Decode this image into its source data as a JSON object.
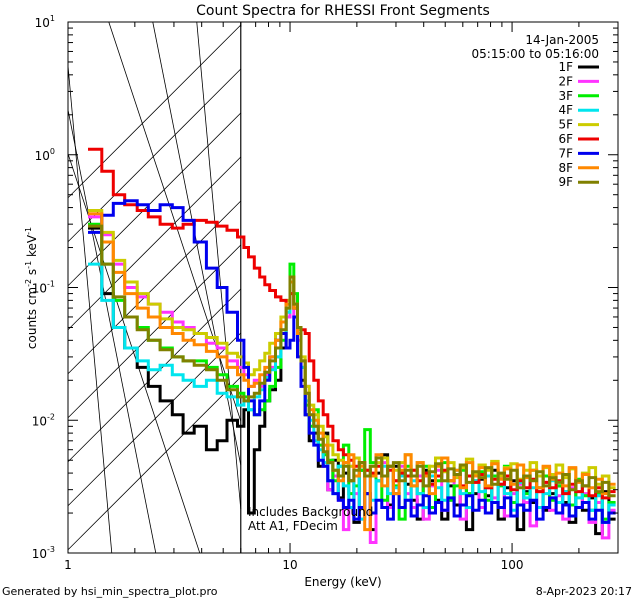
{
  "chart_data": {
    "type": "line",
    "title": "Count Spectra for RHESSI Front Segments",
    "xlabel": "Energy (keV)",
    "ylabel_parts": {
      "main": "counts cm",
      "exp1": "-2",
      "s": " s",
      "exp2": "-1",
      "kev": " keV",
      "exp3": "-1"
    },
    "xscale": "log",
    "yscale": "log",
    "xlim": [
      1,
      300
    ],
    "ylim": [
      0.001,
      10
    ],
    "x_ticks": [
      {
        "value": 1,
        "label": "1"
      },
      {
        "value": 10,
        "label": "10"
      },
      {
        "value": 100,
        "label": "100"
      }
    ],
    "y_ticks": [
      {
        "value": 0.001,
        "base": "10",
        "exp": "-3"
      },
      {
        "value": 0.01,
        "base": "10",
        "exp": "-2"
      },
      {
        "value": 0.1,
        "base": "10",
        "exp": "-1"
      },
      {
        "value": 1,
        "base": "10",
        "exp": "0"
      },
      {
        "value": 10,
        "base": "10",
        "exp": "1"
      }
    ],
    "date": "14-Jan-2005",
    "time_range": "05:15:00 to 05:16:00",
    "shaded_region_kev": [
      1,
      6
    ],
    "annotation_lines": [
      "Includes Background",
      "Att A1, FDecim"
    ],
    "footer_left": "Generated by hsi_min_spectra_plot.pro",
    "footer_right": "8-Apr-2023 20:17",
    "edges": [
      1.23,
      1.42,
      1.6,
      1.8,
      2.05,
      2.3,
      2.6,
      2.95,
      3.3,
      3.7,
      4.2,
      4.7,
      5.2,
      5.8,
      6.2,
      6.5,
      6.9,
      7.3,
      7.7,
      8.1,
      8.6,
      9.1,
      9.6,
      10.0,
      10.4,
      10.8,
      11.2,
      11.7,
      12.2,
      12.8,
      13.4,
      14.1,
      14.8,
      15.6,
      16.5,
      17.4,
      18.4,
      19.4,
      20.5,
      21.7,
      23.0,
      24.4,
      25.9,
      27.5,
      29.2,
      31.0,
      33.0,
      35.1,
      37.4,
      39.8,
      42.4,
      45.2,
      48.2,
      51.4,
      54.8,
      58.4,
      62.3,
      66.5,
      71.0,
      75.8,
      81.0,
      86.5,
      92.4,
      98.7,
      105.5,
      112.8,
      120.6,
      129.0,
      138.0,
      147.6,
      157.9,
      169.0,
      180.9,
      193.7,
      207.4,
      222.1,
      237.9,
      254.9,
      273.1,
      292.7
    ],
    "series": [
      {
        "name": "1F",
        "color": "#000000",
        "values": [
          0.28,
          0.09,
          0.05,
          0.035,
          0.025,
          0.018,
          0.014,
          0.011,
          0.008,
          0.009,
          0.006,
          0.007,
          0.01,
          0.009,
          0.012,
          0.002,
          0.006,
          0.009,
          0.014,
          0.017,
          0.02,
          0.035,
          0.06,
          0.11,
          0.07,
          0.048,
          0.02,
          0.011,
          0.007,
          0.008,
          0.0045,
          0.008,
          0.003,
          0.005,
          0.0026,
          0.004,
          0.0035,
          0.0017,
          0.0042,
          0.0028,
          0.0015,
          0.004,
          0.0055,
          0.0023,
          0.0045,
          0.004,
          0.0033,
          0.0025,
          0.0018,
          0.0042,
          0.0035,
          0.0025,
          0.0018,
          0.0032,
          0.0023,
          0.0043,
          0.0015,
          0.0028,
          0.0036,
          0.0027,
          0.0042,
          0.0018,
          0.0031,
          0.0035,
          0.0015,
          0.0029,
          0.0024,
          0.0038,
          0.0021,
          0.0028,
          0.0032,
          0.0024,
          0.0017,
          0.0035,
          0.0021,
          0.0026,
          0.0014,
          0.0029,
          0.0018
        ]
      },
      {
        "name": "2F",
        "color": "#ff33ff",
        "values": [
          0.34,
          0.25,
          0.15,
          0.1,
          0.085,
          0.075,
          0.065,
          0.055,
          0.05,
          0.045,
          0.038,
          0.035,
          0.028,
          0.025,
          0.022,
          0.018,
          0.02,
          0.018,
          0.022,
          0.025,
          0.03,
          0.045,
          0.06,
          0.09,
          0.06,
          0.04,
          0.028,
          0.018,
          0.011,
          0.009,
          0.0065,
          0.0045,
          0.003,
          0.0038,
          0.0025,
          0.0015,
          0.0045,
          0.0028,
          0.0018,
          0.0038,
          0.0012,
          0.0035,
          0.0048,
          0.0022,
          0.0035,
          0.0045,
          0.0028,
          0.0022,
          0.0038,
          0.0018,
          0.0032,
          0.0042,
          0.0021,
          0.0025,
          0.0038,
          0.0018,
          0.0028,
          0.0034,
          0.0022,
          0.0031,
          0.0026,
          0.0037,
          0.0019,
          0.0028,
          0.0033,
          0.0024,
          0.0016,
          0.0029,
          0.0034,
          0.0021,
          0.0027,
          0.0018,
          0.0031,
          0.0022,
          0.0028,
          0.0017,
          0.0024,
          0.0013,
          0.0021
        ]
      },
      {
        "name": "3F",
        "color": "#00ee00",
        "values": [
          0.3,
          0.15,
          0.08,
          0.06,
          0.05,
          0.04,
          0.035,
          0.03,
          0.028,
          0.028,
          0.025,
          0.022,
          0.018,
          0.016,
          0.015,
          0.012,
          0.011,
          0.012,
          0.014,
          0.018,
          0.025,
          0.04,
          0.07,
          0.15,
          0.09,
          0.05,
          0.025,
          0.013,
          0.009,
          0.012,
          0.0065,
          0.0055,
          0.005,
          0.0035,
          0.0045,
          0.0065,
          0.0028,
          0.0032,
          0.0042,
          0.0085,
          0.0048,
          0.0035,
          0.0025,
          0.0045,
          0.0032,
          0.0018,
          0.0045,
          0.0032,
          0.0028,
          0.0045,
          0.0022,
          0.0035,
          0.0048,
          0.0025,
          0.0032,
          0.0042,
          0.0028,
          0.0035,
          0.0041,
          0.0025,
          0.0038,
          0.0032,
          0.0045,
          0.0024,
          0.0035,
          0.0028,
          0.0042,
          0.0031,
          0.0038,
          0.0025,
          0.0032,
          0.0029,
          0.0023,
          0.0036,
          0.0027,
          0.0021,
          0.0028,
          0.0018,
          0.0024
        ]
      },
      {
        "name": "4F",
        "color": "#00e5ee",
        "values": [
          0.15,
          0.08,
          0.05,
          0.035,
          0.028,
          0.024,
          0.026,
          0.022,
          0.02,
          0.018,
          0.02,
          0.016,
          0.015,
          0.013,
          0.014,
          0.012,
          0.015,
          0.017,
          0.021,
          0.024,
          0.03,
          0.045,
          0.065,
          0.11,
          0.07,
          0.045,
          0.025,
          0.014,
          0.01,
          0.007,
          0.006,
          0.0048,
          0.0035,
          0.0028,
          0.0045,
          0.0032,
          0.0022,
          0.0038,
          0.0018,
          0.0042,
          0.0025,
          0.0035,
          0.0045,
          0.0028,
          0.0031,
          0.0038,
          0.0025,
          0.0035,
          0.0028,
          0.0022,
          0.0038,
          0.0031,
          0.0025,
          0.0035,
          0.0042,
          0.0028,
          0.0022,
          0.0035,
          0.0029,
          0.0038,
          0.0024,
          0.0033,
          0.0028,
          0.0021,
          0.0034,
          0.0026,
          0.0031,
          0.0022,
          0.0028,
          0.0035,
          0.0024,
          0.0029,
          0.0019,
          0.0026,
          0.0032,
          0.0021,
          0.0027,
          0.0017,
          0.0023
        ]
      },
      {
        "name": "5F",
        "color": "#cccc00",
        "values": [
          0.38,
          0.26,
          0.16,
          0.11,
          0.09,
          0.075,
          0.058,
          0.05,
          0.048,
          0.045,
          0.042,
          0.038,
          0.032,
          0.03,
          0.027,
          0.022,
          0.024,
          0.028,
          0.032,
          0.038,
          0.045,
          0.06,
          0.08,
          0.12,
          0.075,
          0.048,
          0.03,
          0.018,
          0.013,
          0.011,
          0.009,
          0.0075,
          0.0065,
          0.0055,
          0.005,
          0.0048,
          0.0045,
          0.0052,
          0.0048,
          0.0042,
          0.0045,
          0.0048,
          0.0052,
          0.0045,
          0.0042,
          0.0048,
          0.0055,
          0.0042,
          0.0048,
          0.0038,
          0.0045,
          0.0052,
          0.0041,
          0.0048,
          0.0037,
          0.0044,
          0.0051,
          0.0039,
          0.0046,
          0.0042,
          0.0049,
          0.0038,
          0.0044,
          0.0047,
          0.0036,
          0.0042,
          0.0048,
          0.0038,
          0.0044,
          0.0039,
          0.0046,
          0.0037,
          0.0043,
          0.0035,
          0.004,
          0.0044,
          0.0033,
          0.0038,
          0.0031
        ]
      },
      {
        "name": "6F",
        "color": "#ee0000",
        "values": [
          1.1,
          0.75,
          0.5,
          0.42,
          0.38,
          0.34,
          0.3,
          0.28,
          0.3,
          0.32,
          0.31,
          0.29,
          0.27,
          0.24,
          0.2,
          0.17,
          0.14,
          0.12,
          0.105,
          0.095,
          0.085,
          0.08,
          0.075,
          0.09,
          0.07,
          0.05,
          0.048,
          0.045,
          0.028,
          0.02,
          0.014,
          0.011,
          0.009,
          0.007,
          0.006,
          0.0055,
          0.005,
          0.0045,
          0.0048,
          0.0042,
          0.004,
          0.0045,
          0.0038,
          0.0042,
          0.0035,
          0.004,
          0.0038,
          0.0042,
          0.0035,
          0.004,
          0.0033,
          0.0038,
          0.0042,
          0.0035,
          0.0039,
          0.0032,
          0.0038,
          0.0034,
          0.0039,
          0.0031,
          0.0036,
          0.0033,
          0.0038,
          0.003,
          0.0035,
          0.0031,
          0.0036,
          0.0029,
          0.0034,
          0.0031,
          0.0035,
          0.0028,
          0.0033,
          0.0029,
          0.0032,
          0.0027,
          0.0031,
          0.0026,
          0.0029
        ]
      },
      {
        "name": "7F",
        "color": "#0000ee",
        "values": [
          0.26,
          0.35,
          0.43,
          0.45,
          0.42,
          0.38,
          0.42,
          0.4,
          0.32,
          0.22,
          0.14,
          0.1,
          0.065,
          0.04,
          0.025,
          0.014,
          0.011,
          0.014,
          0.02,
          0.03,
          0.04,
          0.045,
          0.035,
          0.04,
          0.06,
          0.03,
          0.018,
          0.011,
          0.008,
          0.0065,
          0.005,
          0.0045,
          0.0035,
          0.0028,
          0.0025,
          0.0022,
          0.0025,
          0.0018,
          0.0022,
          0.0028,
          0.002,
          0.0025,
          0.0022,
          0.0018,
          0.0028,
          0.0022,
          0.0025,
          0.0019,
          0.0023,
          0.0027,
          0.002,
          0.0024,
          0.0021,
          0.0026,
          0.0019,
          0.0023,
          0.0027,
          0.0021,
          0.0025,
          0.002,
          0.0024,
          0.0022,
          0.0026,
          0.0019,
          0.0023,
          0.0021,
          0.0025,
          0.0018,
          0.0022,
          0.0026,
          0.002,
          0.0023,
          0.0019,
          0.0022,
          0.0024,
          0.0018,
          0.0021,
          0.0017,
          0.002
        ]
      },
      {
        "name": "8F",
        "color": "#ff8800",
        "values": [
          0.36,
          0.22,
          0.13,
          0.09,
          0.07,
          0.06,
          0.05,
          0.045,
          0.04,
          0.037,
          0.033,
          0.03,
          0.025,
          0.022,
          0.02,
          0.018,
          0.019,
          0.022,
          0.025,
          0.03,
          0.04,
          0.055,
          0.075,
          0.11,
          0.07,
          0.045,
          0.028,
          0.016,
          0.012,
          0.01,
          0.008,
          0.0065,
          0.0048,
          0.0042,
          0.0035,
          0.0048,
          0.0055,
          0.0038,
          0.0045,
          0.0015,
          0.0038,
          0.0055,
          0.0032,
          0.0045,
          0.0028,
          0.0042,
          0.0055,
          0.0032,
          0.0048,
          0.0038,
          0.0028,
          0.0045,
          0.0052,
          0.0035,
          0.0042,
          0.0031,
          0.0048,
          0.0038,
          0.0044,
          0.0032,
          0.0047,
          0.0036,
          0.0043,
          0.0033,
          0.0046,
          0.0037,
          0.0042,
          0.0031,
          0.0045,
          0.0036,
          0.004,
          0.0032,
          0.0044,
          0.0034,
          0.0039,
          0.0031,
          0.0036,
          0.0028,
          0.0033
        ]
      },
      {
        "name": "9F",
        "color": "#808000",
        "values": [
          0.29,
          0.15,
          0.085,
          0.06,
          0.048,
          0.04,
          0.034,
          0.03,
          0.028,
          0.026,
          0.024,
          0.02,
          0.017,
          0.015,
          0.014,
          0.015,
          0.016,
          0.019,
          0.023,
          0.028,
          0.035,
          0.048,
          0.07,
          0.12,
          0.075,
          0.05,
          0.028,
          0.016,
          0.011,
          0.009,
          0.0072,
          0.0058,
          0.0048,
          0.0042,
          0.0038,
          0.0045,
          0.0035,
          0.0042,
          0.0048,
          0.0038,
          0.0045,
          0.0052,
          0.0038,
          0.0045,
          0.0048,
          0.0035,
          0.0042,
          0.0038,
          0.0045,
          0.0032,
          0.0041,
          0.0047,
          0.0035,
          0.0043,
          0.0039,
          0.0046,
          0.0034,
          0.0041,
          0.0037,
          0.0044,
          0.0033,
          0.004,
          0.0036,
          0.0042,
          0.0031,
          0.0038,
          0.0035,
          0.0041,
          0.0032,
          0.0037,
          0.0034,
          0.0039,
          0.003,
          0.0035,
          0.0032,
          0.0037,
          0.0029,
          0.0034,
          0.0027
        ]
      }
    ]
  }
}
